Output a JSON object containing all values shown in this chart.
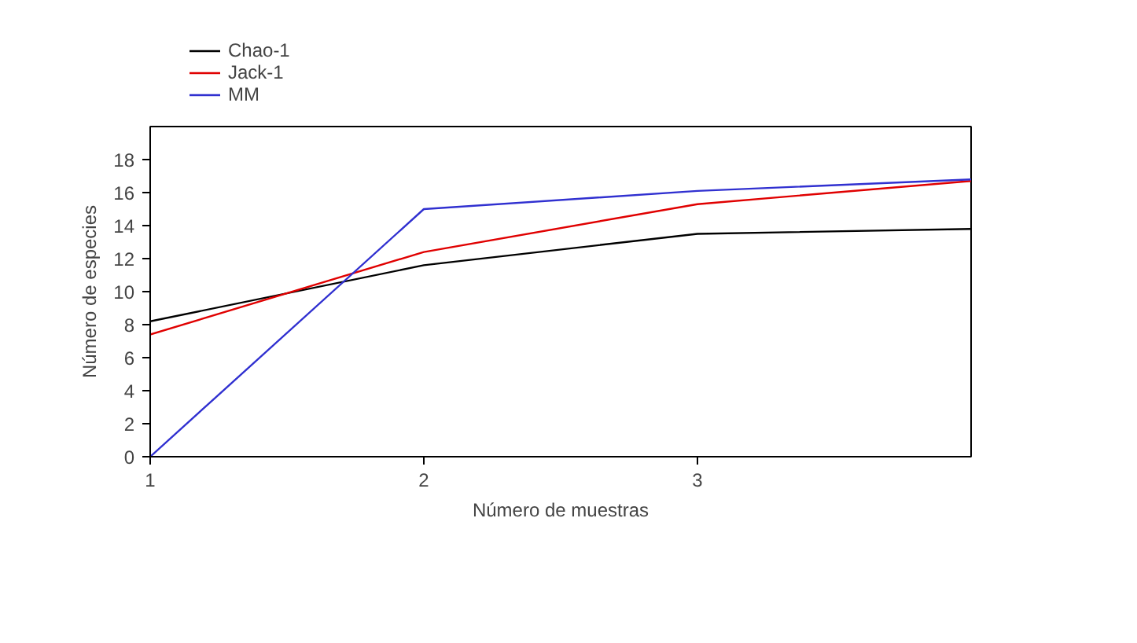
{
  "chart_data": {
    "type": "line",
    "xlabel": "Número de muestras",
    "ylabel": "Número de especies",
    "x": [
      1,
      2,
      3,
      4
    ],
    "xlim": [
      1,
      4
    ],
    "xticks": [
      1,
      2,
      3
    ],
    "ylim": [
      0,
      20
    ],
    "yticks": [
      0,
      2,
      4,
      6,
      8,
      10,
      12,
      14,
      16,
      18
    ],
    "grid": false,
    "legend": "top left",
    "marker": "none",
    "line_style": "solid",
    "series": [
      {
        "name": "Chao-1",
        "color": "#000000",
        "values": [
          8.2,
          11.6,
          13.5,
          13.8
        ]
      },
      {
        "name": "Jack-1",
        "color": "#e00000",
        "values": [
          7.4,
          12.4,
          15.3,
          16.7
        ]
      },
      {
        "name": "MM",
        "color": "#3030d0",
        "values": [
          0,
          15.0,
          16.1,
          16.8
        ]
      }
    ]
  }
}
